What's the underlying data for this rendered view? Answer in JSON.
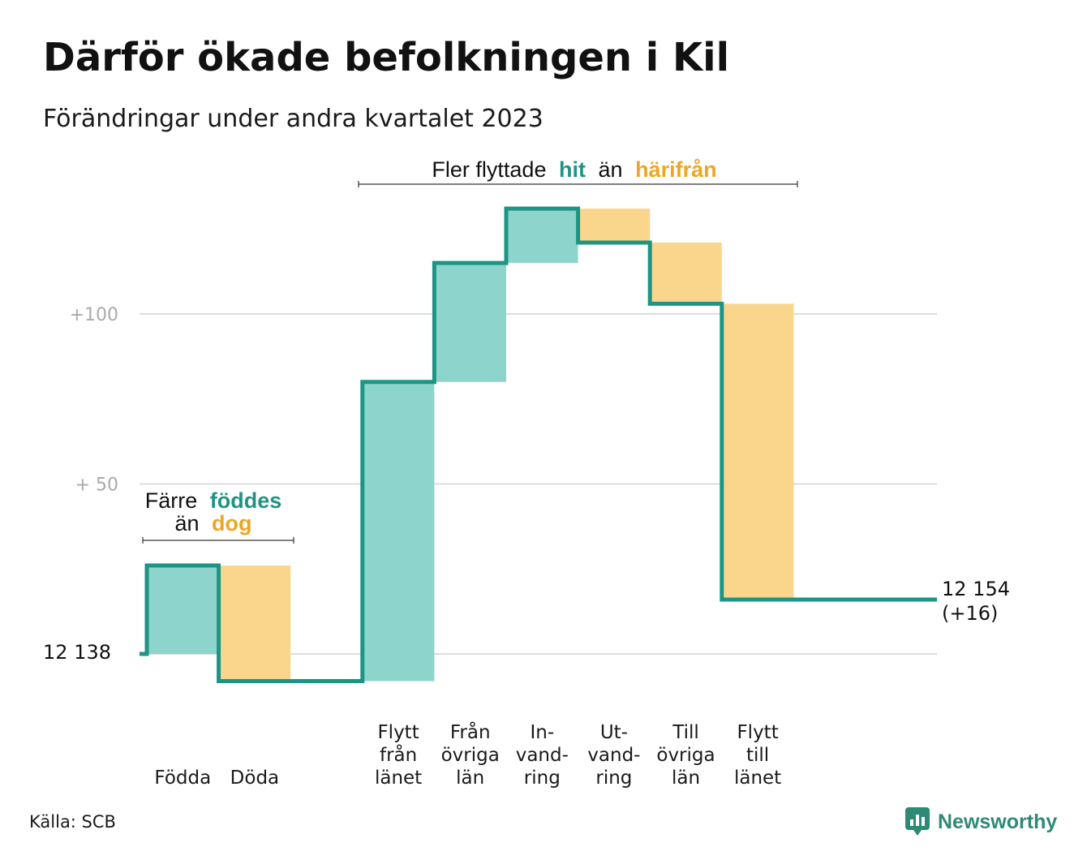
{
  "title": "Därför ökade befolkningen i Kil",
  "subtitle": "Förändringar under andra kvartalet 2023",
  "source": "Källa: SCB",
  "brand": {
    "name": "Newsworthy",
    "icon": "newsworthy-logo-icon",
    "color": "#2d8a75"
  },
  "colors": {
    "increase_fill": "#8dd5cc",
    "decrease_fill": "#fad68c",
    "step_line": "#1e9484",
    "increase_text": "#1e9484",
    "decrease_text": "#f0a623",
    "grid": "#dddddd",
    "tick_text": "#aaaaaa"
  },
  "annotations": {
    "births": {
      "line1_prefix": "Färre",
      "line1_highlight": "föddes",
      "line2_prefix": "än",
      "line2_highlight": "dog"
    },
    "migration": {
      "prefix": "Fler flyttade",
      "highlight_in": "hit",
      "middle": "än",
      "highlight_out": "härifrån"
    }
  },
  "chart_data": {
    "type": "waterfall",
    "start_label": "12 138",
    "start_value": 12138,
    "end_label_line1": "12 154",
    "end_label_line2": "(+16)",
    "end_value": 12154,
    "yticks": [
      {
        "value": 100,
        "label": "+100"
      },
      {
        "value": 50,
        "label": "+  50"
      }
    ],
    "ylim": [
      -16,
      140
    ],
    "grid": true,
    "steps": [
      {
        "lines": [
          "Födda"
        ],
        "delta": 26,
        "direction": "increase"
      },
      {
        "lines": [
          "Döda"
        ],
        "delta": -34,
        "direction": "decrease"
      },
      {
        "lines": [
          "",
          "",
          ""
        ],
        "delta": 0,
        "direction": "none"
      },
      {
        "lines": [
          "Flytt",
          "från",
          "länet"
        ],
        "delta": 88,
        "direction": "increase"
      },
      {
        "lines": [
          "Från",
          "övriga",
          "län"
        ],
        "delta": 35,
        "direction": "increase"
      },
      {
        "lines": [
          "In-",
          "vand-",
          "ring"
        ],
        "delta": 16,
        "direction": "increase"
      },
      {
        "lines": [
          "Ut-",
          "vand-",
          "ring"
        ],
        "delta": -10,
        "direction": "decrease"
      },
      {
        "lines": [
          "Till",
          "övriga",
          "län"
        ],
        "delta": -18,
        "direction": "decrease"
      },
      {
        "lines": [
          "Flytt",
          "till",
          "länet"
        ],
        "delta": -87,
        "direction": "decrease"
      }
    ]
  }
}
